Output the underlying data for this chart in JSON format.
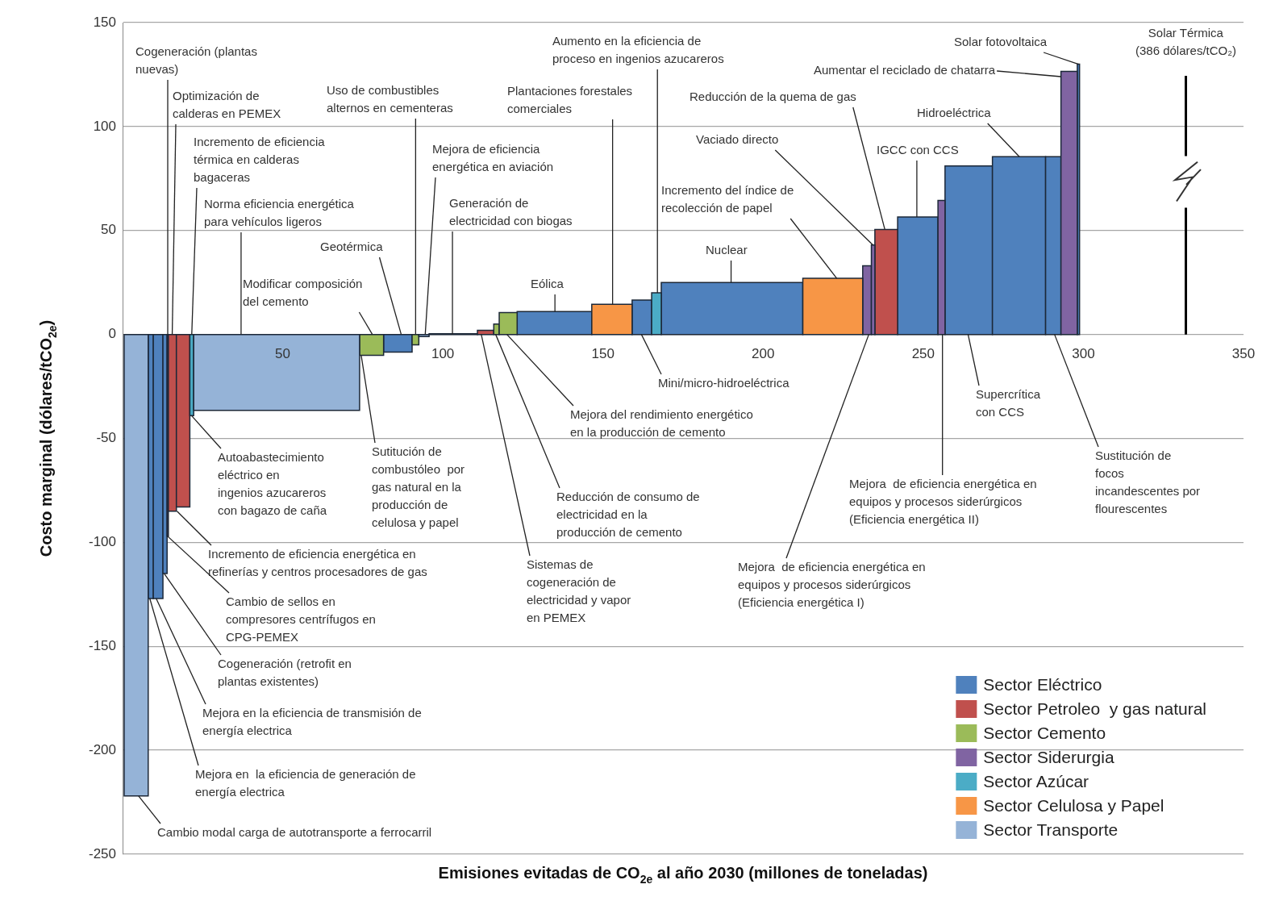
{
  "chart_data": {
    "type": "histogram",
    "xlabel": "Emisiones evitadas de CO$_{2e}$ al año 2030 (millones de toneladas)",
    "ylabel": "Costo marginal (dólares/tCO$_{2e}$)",
    "bins": [
      0.5,
      8.0,
      9.6,
      12.6,
      13.9,
      14.3,
      16.8,
      21.0,
      22.2,
      74.0,
      81.5,
      90.4,
      92.5,
      95.7,
      110.8,
      115.9,
      117.6,
      123.2,
      146.5,
      159.1,
      165.2,
      168.2,
      212.4,
      231.1,
      233.8,
      234.9,
      242.0,
      254.6,
      256.8,
      271.6,
      288.2,
      293.0,
      298.1,
      298.8
    ],
    "series": [
      {
        "name": "Sector Eléctrico",
        "color": "#4f81bd",
        "values": [
          null,
          -127,
          -127,
          -115,
          null,
          null,
          null,
          null,
          null,
          null,
          -8.5,
          null,
          null,
          0.3,
          null,
          null,
          null,
          11,
          null,
          16.5,
          null,
          25,
          null,
          null,
          null,
          null,
          56.5,
          null,
          81,
          85.5,
          85.5,
          null,
          130
        ]
      },
      {
        "name": "Sector Petroleo  y gas natural",
        "color": "#c0504d",
        "values": [
          null,
          null,
          null,
          null,
          -97,
          -85,
          -83,
          null,
          null,
          null,
          null,
          null,
          null,
          null,
          2,
          null,
          null,
          null,
          null,
          null,
          null,
          null,
          null,
          null,
          null,
          50.5,
          null,
          null,
          null,
          null,
          null,
          null,
          null
        ]
      },
      {
        "name": "Sector Cemento",
        "color": "#9bbb59",
        "values": [
          null,
          null,
          null,
          null,
          null,
          null,
          null,
          null,
          null,
          -10,
          null,
          -5,
          null,
          null,
          null,
          5,
          10.5,
          null,
          null,
          null,
          null,
          null,
          null,
          null,
          null,
          null,
          null,
          null,
          null,
          null,
          null,
          null,
          null
        ]
      },
      {
        "name": "Sector Siderurgia",
        "color": "#8064a2",
        "values": [
          null,
          null,
          null,
          null,
          null,
          null,
          null,
          null,
          null,
          null,
          null,
          null,
          null,
          null,
          null,
          null,
          null,
          null,
          null,
          null,
          null,
          null,
          null,
          33,
          43,
          null,
          null,
          64.5,
          null,
          null,
          null,
          126.5,
          null
        ]
      },
      {
        "name": "Sector Azúcar",
        "color": "#4bacc6",
        "values": [
          null,
          null,
          null,
          null,
          null,
          null,
          null,
          -39,
          null,
          null,
          null,
          null,
          null,
          null,
          null,
          null,
          null,
          null,
          null,
          null,
          20,
          null,
          null,
          null,
          null,
          null,
          null,
          null,
          null,
          null,
          null,
          null,
          null
        ]
      },
      {
        "name": "Sector Celulosa y Papel",
        "color": "#f79646",
        "values": [
          null,
          null,
          null,
          null,
          null,
          null,
          null,
          null,
          null,
          null,
          null,
          null,
          null,
          null,
          null,
          null,
          null,
          null,
          14.5,
          null,
          null,
          null,
          27,
          null,
          null,
          null,
          null,
          null,
          null,
          null,
          null,
          null,
          null
        ]
      },
      {
        "name": "Sector Transporte",
        "color": "#95b3d7",
        "values": [
          -222,
          null,
          null,
          null,
          null,
          null,
          null,
          null,
          -36.5,
          null,
          null,
          null,
          -1,
          null,
          null,
          null,
          null,
          null,
          null,
          null,
          null,
          null,
          null,
          null,
          null,
          null,
          null,
          null,
          null,
          null,
          null,
          null,
          null
        ]
      }
    ],
    "xlim": [
      0,
      350
    ],
    "xticks": [
      50,
      100,
      150,
      200,
      250,
      300,
      350
    ],
    "ylim": [
      -250,
      150
    ],
    "yticks": [
      -250,
      -200,
      -150,
      -100,
      -50,
      0,
      50,
      100,
      150
    ],
    "grid": "y",
    "legend": "bottom right",
    "ref_lines": [
      {
        "axis": "x",
        "value": 332,
        "label": "Solar Térmica\n(386 dólares/tCO₂)"
      }
    ],
    "annotations": [
      {
        "text": "Cogeneración (plantas\nnuevas)",
        "x": 14.1,
        "y": 0
      },
      {
        "text": "Optimización de\ncalderas en PEMEX",
        "x": 15.5,
        "y": 0
      },
      {
        "text": "Incremento de eficiencia\ntérmica en calderas\nbagaceras",
        "x": 21.6,
        "y": 0
      },
      {
        "text": "Norma eficiencia energética\npara vehículos ligeros",
        "x": 37,
        "y": 0
      },
      {
        "text": "Modificar composición\ndel cemento",
        "x": 78,
        "y": 0
      },
      {
        "text": "Geotérmica",
        "x": 87,
        "y": 0
      },
      {
        "text": "Uso de combustibles\nalternos en cementeras",
        "x": 91.5,
        "y": 0
      },
      {
        "text": "Mejora de eficiencia\nenergética en aviación",
        "x": 94.5,
        "y": 0
      },
      {
        "text": "Generación de\nelectricidad con biogas",
        "x": 103,
        "y": 0
      },
      {
        "text": "Plantaciones forestales\ncomerciales",
        "x": 153,
        "y": 14.5
      },
      {
        "text": "Aumento en la eficiencia de\nproceso en ingenios azucareros",
        "x": 167,
        "y": 20
      },
      {
        "text": "Reducción de la quema de gas",
        "x": 238,
        "y": 50.5
      },
      {
        "text": "Vaciado directo",
        "x": 234.3,
        "y": 43
      },
      {
        "text": "Incremento del índice de\nrecolección de papel",
        "x": 223,
        "y": 27
      },
      {
        "text": "Nuclear",
        "x": 190,
        "y": 25
      },
      {
        "text": "Eólica",
        "x": 135,
        "y": 11
      },
      {
        "text": "Solar fotovoltaica",
        "x": 298.5,
        "y": 130
      },
      {
        "text": "Aumentar el reciclado de chatarra",
        "x": 293,
        "y": 124
      },
      {
        "text": "Hidroeléctrica",
        "x": 280,
        "y": 85.5
      },
      {
        "text": "IGCC con CCS",
        "x": 248,
        "y": 56.5
      },
      {
        "text": "Mini/micro-hidroeléctrica",
        "x": 162,
        "y": 0
      },
      {
        "text": "Supercrítica\ncon CCS",
        "x": 264,
        "y": 0
      },
      {
        "text": "Sustitución de\nfocos\nincandescentes por\nflourescentes",
        "x": 291,
        "y": 0
      },
      {
        "text": "Mejora  de eficiencia energética en\nequipos y procesos siderúrgicos\n(Eficiencia energética II)",
        "x": 256,
        "y": 0
      },
      {
        "text": "Mejora  de eficiencia energética en\nequipos y procesos siderúrgicos\n(Eficiencia energética I)",
        "x": 233,
        "y": 0
      },
      {
        "text": "Mejora del rendimiento energético\nen la producción de cemento",
        "x": 120,
        "y": 0
      },
      {
        "text": "Reducción de consumo de\nelectricidad en la\nproducción de cemento",
        "x": 116.5,
        "y": 0
      },
      {
        "text": "Sistemas de\ncogeneración de\nelectricidad y vapor\nen PEMEX",
        "x": 112,
        "y": 0
      },
      {
        "text": "Sutitución de\ncombustóleo  por\ngas natural en la\nproducción de\ncelulosa y papel",
        "x": 74.5,
        "y": -10
      },
      {
        "text": "Autoabastecimiento\neléctrico en\ningenios azucareros\ncon bagazo de caña",
        "x": 21.5,
        "y": -39
      },
      {
        "text": "Incremento de eficiencia energética en\nrefinerías y centros procesadores de gas",
        "x": 17,
        "y": -85
      },
      {
        "text": "Cambio de sellos en\ncompresores centrífugos en\nCPG-PEMEX",
        "x": 14,
        "y": -97
      },
      {
        "text": "Cogeneración (retrofit en\nplantas existentes)",
        "x": 13,
        "y": -115
      },
      {
        "text": "Mejora en la eficiencia de transmisión de\nenergía electrica",
        "x": 10.5,
        "y": -127
      },
      {
        "text": "Mejora en  la eficiencia de generación de\nenergía electrica",
        "x": 8.5,
        "y": -127
      },
      {
        "text": "Cambio modal carga de autotransporte a ferrocarril",
        "x": 5,
        "y": -222
      }
    ]
  }
}
